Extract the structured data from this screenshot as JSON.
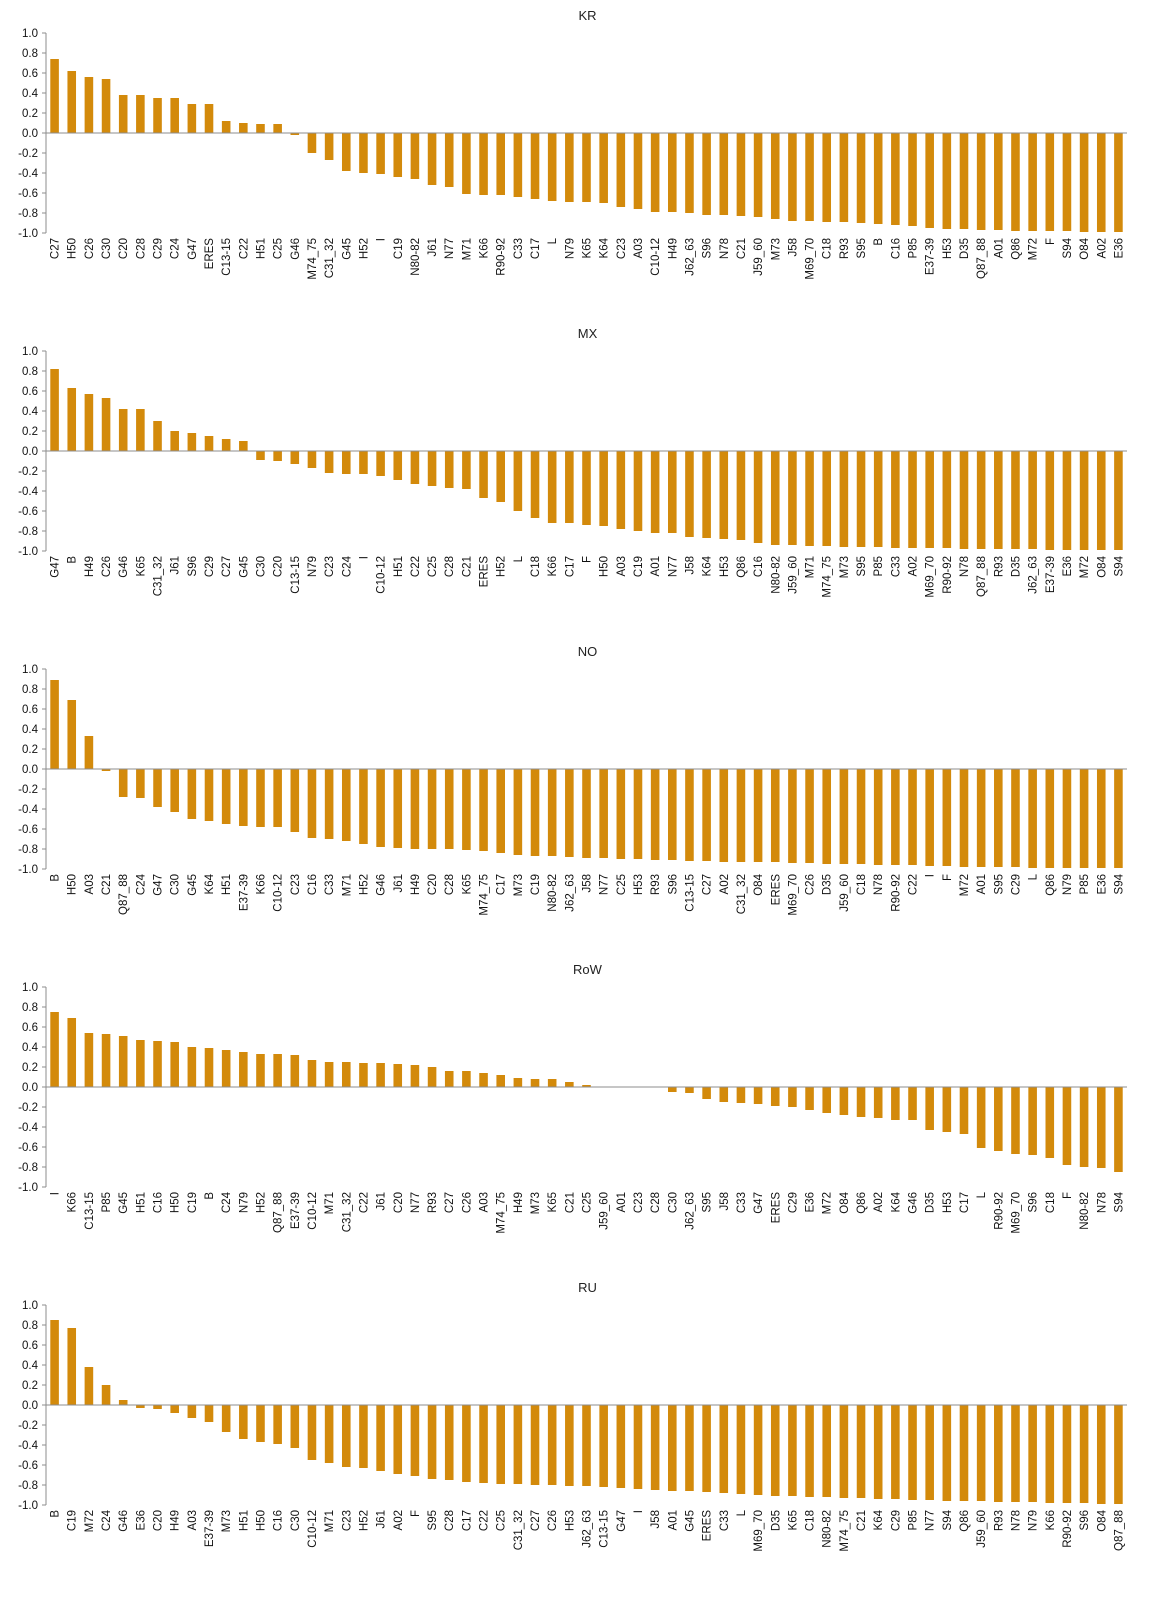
{
  "colors": {
    "bar": "#d38a0b",
    "axis": "#8c8c8c"
  },
  "chart_data": [
    {
      "type": "bar",
      "title": "KR",
      "ylim": [
        -1.0,
        1.0
      ],
      "yticks": [
        "1.0",
        "0.8",
        "0.6",
        "0.4",
        "0.2",
        "0.0",
        "-0.2",
        "-0.4",
        "-0.6",
        "-0.8",
        "-1.0"
      ],
      "grid": false,
      "categories": [
        "C27",
        "H50",
        "C26",
        "C30",
        "C20",
        "C28",
        "C29",
        "C24",
        "G47",
        "ERES",
        "C13-15",
        "C22",
        "H51",
        "C25",
        "G46",
        "M74_75",
        "C31_32",
        "G45",
        "H52",
        "I",
        "C19",
        "N80-82",
        "J61",
        "N77",
        "M71",
        "K66",
        "R90-92",
        "C33",
        "C17",
        "L",
        "N79",
        "K65",
        "K64",
        "C23",
        "A03",
        "C10-12",
        "H49",
        "J62_63",
        "S96",
        "N78",
        "C21",
        "J59_60",
        "M73",
        "J58",
        "M69_70",
        "C18",
        "R93",
        "S95",
        "B",
        "C16",
        "P85",
        "E37-39",
        "H53",
        "D35",
        "Q87_88",
        "A01",
        "Q86",
        "M72",
        "F",
        "S94",
        "O84",
        "A02",
        "E36"
      ],
      "values": [
        0.74,
        0.62,
        0.56,
        0.54,
        0.38,
        0.38,
        0.35,
        0.35,
        0.29,
        0.29,
        0.12,
        0.1,
        0.09,
        0.09,
        -0.02,
        -0.2,
        -0.27,
        -0.38,
        -0.4,
        -0.41,
        -0.44,
        -0.46,
        -0.52,
        -0.54,
        -0.61,
        -0.62,
        -0.62,
        -0.64,
        -0.66,
        -0.68,
        -0.69,
        -0.69,
        -0.7,
        -0.74,
        -0.76,
        -0.79,
        -0.79,
        -0.8,
        -0.82,
        -0.82,
        -0.83,
        -0.84,
        -0.86,
        -0.88,
        -0.88,
        -0.89,
        -0.89,
        -0.9,
        -0.91,
        -0.92,
        -0.93,
        -0.95,
        -0.96,
        -0.96,
        -0.97,
        -0.97,
        -0.98,
        -0.98,
        -0.98,
        -0.98,
        -0.99,
        -0.99,
        -0.99
      ]
    },
    {
      "type": "bar",
      "title": "MX",
      "ylim": [
        -1.0,
        1.0
      ],
      "yticks": [
        "1.0",
        "0.8",
        "0.6",
        "0.4",
        "0.2",
        "0.0",
        "-0.2",
        "-0.4",
        "-0.6",
        "-0.8",
        "-1.0"
      ],
      "grid": false,
      "categories": [
        "G47",
        "B",
        "H49",
        "C26",
        "G46",
        "K65",
        "C31_32",
        "J61",
        "S96",
        "C29",
        "C27",
        "G45",
        "C30",
        "C20",
        "C13-15",
        "N79",
        "C23",
        "C24",
        "I",
        "C10-12",
        "H51",
        "C22",
        "C25",
        "C28",
        "C21",
        "ERES",
        "H52",
        "L",
        "C18",
        "K66",
        "C17",
        "F",
        "H50",
        "A03",
        "C19",
        "A01",
        "N77",
        "J58",
        "K64",
        "H53",
        "Q86",
        "C16",
        "N80-82",
        "J59_60",
        "M71",
        "M74_75",
        "M73",
        "S95",
        "P85",
        "C33",
        "A02",
        "M69_70",
        "R90-92",
        "N78",
        "Q87_88",
        "R93",
        "D35",
        "J62_63",
        "E37-39",
        "E36",
        "M72",
        "O84",
        "S94"
      ],
      "values": [
        0.82,
        0.63,
        0.57,
        0.53,
        0.42,
        0.42,
        0.3,
        0.2,
        0.18,
        0.15,
        0.12,
        0.1,
        -0.09,
        -0.1,
        -0.13,
        -0.17,
        -0.22,
        -0.23,
        -0.23,
        -0.25,
        -0.29,
        -0.33,
        -0.35,
        -0.37,
        -0.38,
        -0.47,
        -0.51,
        -0.6,
        -0.67,
        -0.72,
        -0.72,
        -0.74,
        -0.75,
        -0.78,
        -0.8,
        -0.82,
        -0.82,
        -0.86,
        -0.87,
        -0.88,
        -0.89,
        -0.92,
        -0.94,
        -0.94,
        -0.95,
        -0.95,
        -0.96,
        -0.96,
        -0.96,
        -0.97,
        -0.97,
        -0.97,
        -0.97,
        -0.98,
        -0.98,
        -0.98,
        -0.98,
        -0.98,
        -0.99,
        -0.99,
        -0.99,
        -0.99,
        -0.99
      ]
    },
    {
      "type": "bar",
      "title": "NO",
      "ylim": [
        -1.0,
        1.0
      ],
      "yticks": [
        "1.0",
        "0.8",
        "0.6",
        "0.4",
        "0.2",
        "0.0",
        "-0.2",
        "-0.4",
        "-0.6",
        "-0.8",
        "-1.0"
      ],
      "grid": false,
      "categories": [
        "B",
        "H50",
        "A03",
        "C21",
        "Q87_88",
        "C24",
        "G47",
        "C30",
        "G45",
        "K64",
        "H51",
        "E37-39",
        "K66",
        "C10-12",
        "C23",
        "C16",
        "C33",
        "M71",
        "H52",
        "G46",
        "J61",
        "H49",
        "C20",
        "C28",
        "K65",
        "M74_75",
        "C17",
        "M73",
        "C19",
        "N80-82",
        "J62_63",
        "J58",
        "N77",
        "C25",
        "H53",
        "R93",
        "S96",
        "C13-15",
        "C27",
        "A02",
        "C31_32",
        "O84",
        "ERES",
        "M69_70",
        "C26",
        "D35",
        "J59_60",
        "C18",
        "N78",
        "R90-92",
        "C22",
        "I",
        "F",
        "M72",
        "A01",
        "S95",
        "C29",
        "L",
        "Q86",
        "N79",
        "P85",
        "E36",
        "S94"
      ],
      "values": [
        0.89,
        0.69,
        0.33,
        -0.02,
        -0.28,
        -0.29,
        -0.38,
        -0.43,
        -0.5,
        -0.52,
        -0.55,
        -0.57,
        -0.58,
        -0.58,
        -0.63,
        -0.69,
        -0.7,
        -0.72,
        -0.75,
        -0.78,
        -0.79,
        -0.8,
        -0.8,
        -0.8,
        -0.81,
        -0.82,
        -0.84,
        -0.86,
        -0.87,
        -0.87,
        -0.88,
        -0.89,
        -0.89,
        -0.9,
        -0.9,
        -0.91,
        -0.91,
        -0.92,
        -0.92,
        -0.93,
        -0.93,
        -0.93,
        -0.93,
        -0.94,
        -0.94,
        -0.95,
        -0.95,
        -0.95,
        -0.96,
        -0.96,
        -0.96,
        -0.97,
        -0.97,
        -0.98,
        -0.98,
        -0.98,
        -0.98,
        -0.99,
        -0.99,
        -0.99,
        -0.99,
        -0.99,
        -0.99
      ]
    },
    {
      "type": "bar",
      "title": "RoW",
      "ylim": [
        -1.0,
        1.0
      ],
      "yticks": [
        "1.0",
        "0.8",
        "0.6",
        "0.4",
        "0.2",
        "0.0",
        "-0.2",
        "-0.4",
        "-0.6",
        "-0.8",
        "-1.0"
      ],
      "grid": false,
      "categories": [
        "I",
        "K66",
        "C13-15",
        "P85",
        "G45",
        "H51",
        "C16",
        "H50",
        "C19",
        "B",
        "C24",
        "N79",
        "H52",
        "Q87_88",
        "E37-39",
        "C10-12",
        "M71",
        "C31_32",
        "C22",
        "J61",
        "C20",
        "N77",
        "R93",
        "C27",
        "C26",
        "A03",
        "M74_75",
        "H49",
        "M73",
        "K65",
        "C21",
        "C25",
        "J59_60",
        "A01",
        "C23",
        "C28",
        "C30",
        "J62_63",
        "S95",
        "J58",
        "C33",
        "G47",
        "ERES",
        "C29",
        "E36",
        "M72",
        "O84",
        "Q86",
        "A02",
        "K64",
        "G46",
        "D35",
        "H53",
        "C17",
        "L",
        "R90-92",
        "M69_70",
        "S96",
        "C18",
        "F",
        "N80-82",
        "N78",
        "S94"
      ],
      "values": [
        0.75,
        0.69,
        0.54,
        0.53,
        0.51,
        0.47,
        0.46,
        0.45,
        0.4,
        0.39,
        0.37,
        0.35,
        0.33,
        0.33,
        0.32,
        0.27,
        0.25,
        0.25,
        0.24,
        0.24,
        0.23,
        0.22,
        0.2,
        0.16,
        0.16,
        0.14,
        0.12,
        0.09,
        0.08,
        0.08,
        0.05,
        0.02,
        0.0,
        0.0,
        0.0,
        0.0,
        -0.05,
        -0.06,
        -0.12,
        -0.15,
        -0.16,
        -0.17,
        -0.19,
        -0.2,
        -0.23,
        -0.26,
        -0.28,
        -0.3,
        -0.31,
        -0.33,
        -0.33,
        -0.43,
        -0.45,
        -0.47,
        -0.61,
        -0.64,
        -0.67,
        -0.68,
        -0.71,
        -0.78,
        -0.8,
        -0.81,
        -0.85
      ]
    },
    {
      "type": "bar",
      "title": "RU",
      "ylim": [
        -1.0,
        1.0
      ],
      "yticks": [
        "1.0",
        "0.8",
        "0.6",
        "0.4",
        "0.2",
        "0.0",
        "-0.2",
        "-0.4",
        "-0.6",
        "-0.8",
        "-1.0"
      ],
      "grid": false,
      "categories": [
        "B",
        "C19",
        "M72",
        "C24",
        "G46",
        "E36",
        "C20",
        "H49",
        "A03",
        "E37-39",
        "M73",
        "H51",
        "H50",
        "C16",
        "C30",
        "C10-12",
        "M71",
        "C23",
        "H52",
        "J61",
        "A02",
        "F",
        "S95",
        "C28",
        "C17",
        "C22",
        "C25",
        "C31_32",
        "C27",
        "C26",
        "H53",
        "J62_63",
        "C13-15",
        "G47",
        "I",
        "J58",
        "A01",
        "G45",
        "ERES",
        "C33",
        "L",
        "M69_70",
        "D35",
        "K65",
        "C18",
        "N80-82",
        "M74_75",
        "C21",
        "K64",
        "C29",
        "P85",
        "N77",
        "S94",
        "Q86",
        "J59_60",
        "R93",
        "N78",
        "N79",
        "K66",
        "R90-92",
        "S96",
        "O84",
        "Q87_88"
      ],
      "values": [
        0.85,
        0.77,
        0.38,
        0.2,
        0.05,
        -0.03,
        -0.04,
        -0.08,
        -0.13,
        -0.17,
        -0.27,
        -0.34,
        -0.37,
        -0.39,
        -0.43,
        -0.55,
        -0.58,
        -0.62,
        -0.63,
        -0.66,
        -0.69,
        -0.71,
        -0.74,
        -0.75,
        -0.77,
        -0.78,
        -0.79,
        -0.79,
        -0.8,
        -0.8,
        -0.81,
        -0.81,
        -0.82,
        -0.83,
        -0.84,
        -0.85,
        -0.86,
        -0.86,
        -0.87,
        -0.88,
        -0.89,
        -0.9,
        -0.91,
        -0.91,
        -0.92,
        -0.92,
        -0.93,
        -0.93,
        -0.94,
        -0.94,
        -0.95,
        -0.95,
        -0.96,
        -0.96,
        -0.96,
        -0.97,
        -0.97,
        -0.97,
        -0.98,
        -0.98,
        -0.98,
        -0.99,
        -0.99
      ]
    }
  ]
}
